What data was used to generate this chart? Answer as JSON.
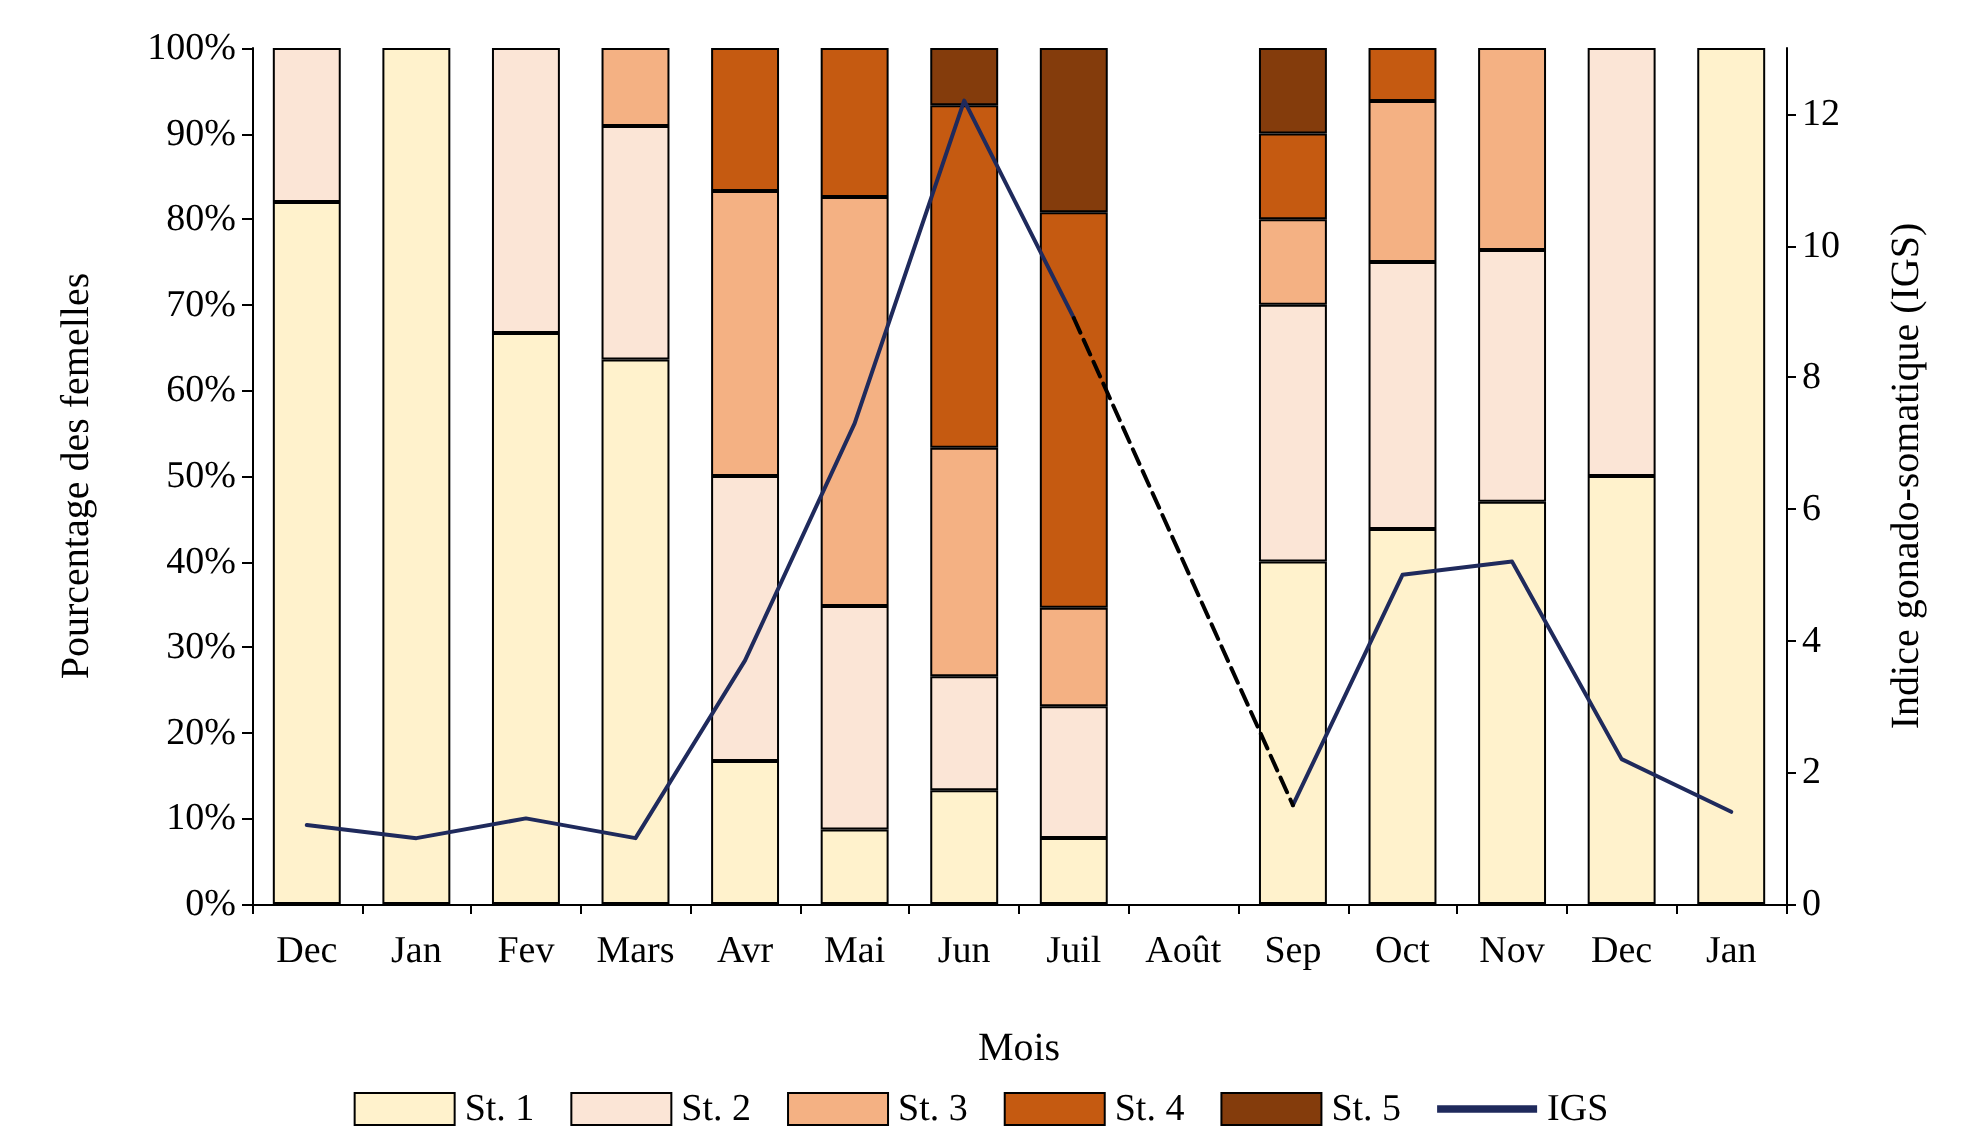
{
  "chart_data": {
    "type": "bar",
    "stacked": true,
    "xlabel": "Mois",
    "ylabel": "Pourcentage des femelles",
    "y2label": "Indice gonado-somatique (IGS)",
    "categories": [
      "Dec",
      "Jan",
      "Fev",
      "Mars",
      "Avr",
      "Mai",
      "Jun",
      "Juil",
      "Août",
      "Sep",
      "Oct",
      "Nov",
      "Dec",
      "Jan"
    ],
    "series": [
      {
        "name": "St. 1",
        "color": "#fff2cc",
        "values": [
          82,
          100,
          66.7,
          63.6,
          16.7,
          8.7,
          13.3,
          7.7,
          null,
          40,
          43.8,
          47,
          50,
          100
        ]
      },
      {
        "name": "St. 2",
        "color": "#fbe5d6",
        "values": [
          18,
          null,
          33.3,
          27.3,
          33.3,
          26.1,
          13.3,
          15.4,
          null,
          30,
          31.2,
          29.4,
          50,
          null
        ]
      },
      {
        "name": "St. 3",
        "color": "#f4b183",
        "values": [
          null,
          null,
          null,
          9.1,
          33.3,
          47.8,
          26.7,
          11.5,
          null,
          10,
          18.8,
          23.6,
          null,
          null
        ]
      },
      {
        "name": "St. 4",
        "color": "#c55a11",
        "values": [
          null,
          null,
          null,
          null,
          16.7,
          17.4,
          40,
          46.2,
          null,
          10,
          6.2,
          null,
          null,
          null
        ]
      },
      {
        "name": "St. 5",
        "color": "#843c0c",
        "values": [
          null,
          null,
          null,
          null,
          null,
          null,
          6.7,
          19.2,
          null,
          10,
          null,
          null,
          null,
          null
        ]
      },
      {
        "name": "IGS",
        "type": "line",
        "axis": "y2",
        "color": "#1f2a5c",
        "line_style": "solid",
        "values": [
          1.2,
          1.0,
          1.3,
          1.0,
          3.7,
          7.3,
          12.2,
          8.9,
          null,
          1.5,
          5.0,
          5.2,
          2.2,
          1.4
        ]
      },
      {
        "type": "line",
        "axis": "y2",
        "color": "#000000",
        "line_style": "dashed",
        "x": [
          "Juil",
          "Sep"
        ],
        "values": [
          8.9,
          1.5
        ]
      }
    ],
    "ylim": [
      0,
      100
    ],
    "yticks": [
      {
        "value": 0,
        "label": "0%"
      },
      {
        "value": 10,
        "label": "10%"
      },
      {
        "value": 20,
        "label": "20%"
      },
      {
        "value": 30,
        "label": "30%"
      },
      {
        "value": 40,
        "label": "40%"
      },
      {
        "value": 50,
        "label": "50%"
      },
      {
        "value": 60,
        "label": "60%"
      },
      {
        "value": 70,
        "label": "70%"
      },
      {
        "value": 80,
        "label": "80%"
      },
      {
        "value": 90,
        "label": "90%"
      },
      {
        "value": 100,
        "label": "100%"
      }
    ],
    "y2lim": [
      0,
      13
    ],
    "y2ticks": [
      0,
      2,
      4,
      6,
      8,
      10,
      12
    ],
    "marker": "none",
    "legend": "bottom"
  }
}
